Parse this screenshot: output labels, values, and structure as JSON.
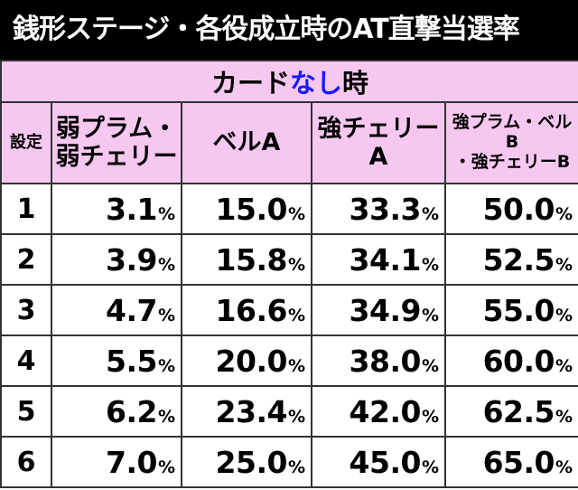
{
  "title": "銭形ステージ・各役成立時のAT直撃当選率",
  "sub_header": {
    "prefix": "カード",
    "accent": "なし",
    "suffix": "時"
  },
  "columns": {
    "setting": "設定",
    "c1": [
      "弱プラム・",
      "弱チェリー"
    ],
    "c2": [
      "ベルA"
    ],
    "c3": [
      "強チェリー",
      "A"
    ],
    "c4": [
      "強プラム・ベルB",
      "・強チェリーB"
    ]
  },
  "percent_sign": "%",
  "rows": [
    {
      "setting": "1",
      "values": [
        "3.1",
        "15.0",
        "33.3",
        "50.0"
      ]
    },
    {
      "setting": "2",
      "values": [
        "3.9",
        "15.8",
        "34.1",
        "52.5"
      ]
    },
    {
      "setting": "3",
      "values": [
        "4.7",
        "16.6",
        "34.9",
        "55.0"
      ]
    },
    {
      "setting": "4",
      "values": [
        "5.5",
        "20.0",
        "38.0",
        "60.0"
      ]
    },
    {
      "setting": "5",
      "values": [
        "6.2",
        "23.4",
        "42.0",
        "62.5"
      ]
    },
    {
      "setting": "6",
      "values": [
        "7.0",
        "25.0",
        "45.0",
        "65.0"
      ]
    }
  ],
  "colors": {
    "title_bg": "#000000",
    "header_bg": "#f6c8f0",
    "accent": "#1a1aff",
    "border": "#333333"
  }
}
